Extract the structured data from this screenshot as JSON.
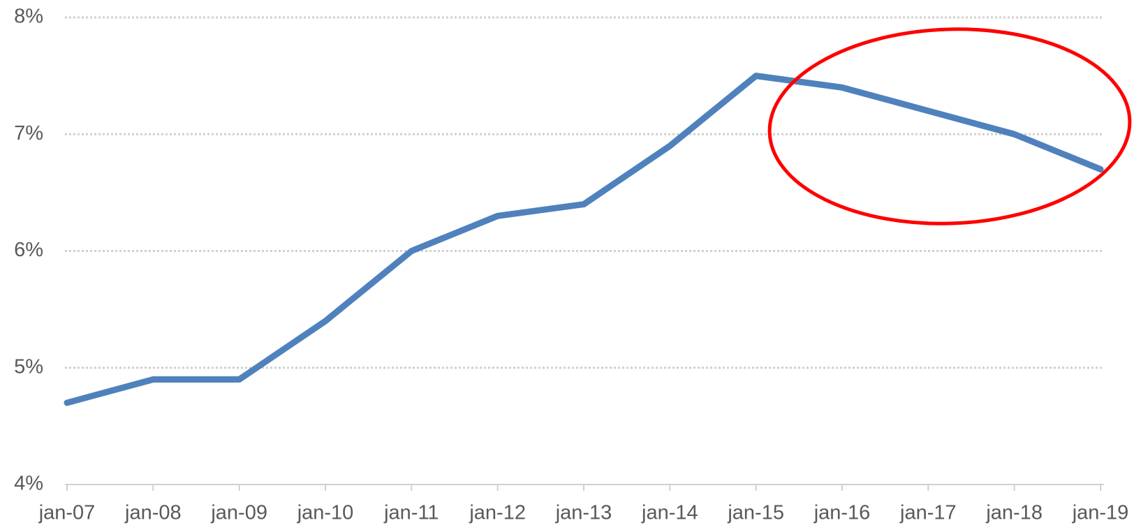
{
  "chart_data": {
    "type": "line",
    "categories": [
      "jan-07",
      "jan-08",
      "jan-09",
      "jan-10",
      "jan-11",
      "jan-12",
      "jan-13",
      "jan-14",
      "jan-15",
      "jan-16",
      "jan-17",
      "jan-18",
      "jan-19"
    ],
    "series": [
      {
        "color": "#4f81bd",
        "values": [
          4.7,
          4.9,
          4.9,
          5.4,
          6.0,
          6.3,
          6.4,
          6.9,
          7.5,
          7.4,
          7.2,
          7.0,
          6.7
        ]
      }
    ],
    "ylim": [
      4,
      8
    ],
    "yticks": [
      {
        "value": 4,
        "label": "4%"
      },
      {
        "value": 5,
        "label": "5%"
      },
      {
        "value": 6,
        "label": "6%"
      },
      {
        "value": 7,
        "label": "7%"
      },
      {
        "value": 8,
        "label": "8%"
      }
    ],
    "grid": true
  }
}
